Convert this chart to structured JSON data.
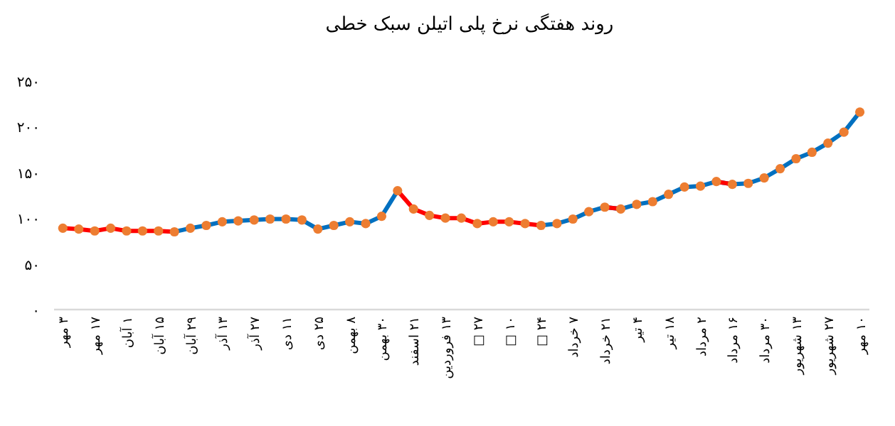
{
  "chart_data": {
    "type": "line",
    "title": "روند هفتگی نرخ پلی اتیلن سبک خطی",
    "categories": [
      "۳ مهر",
      null,
      "۱۷ مهر",
      null,
      "۱ آبان",
      null,
      "۱۵ آبان",
      null,
      "۲۹ آبان",
      null,
      "۱۳ آذر",
      null,
      "۲۷ آذر",
      null,
      "۱۱ دی",
      null,
      "۲۵ دی",
      null,
      "۸ بهمن",
      null,
      "۳۰ بهمن",
      null,
      "۲۱ اسفند",
      null,
      "۱۳ فروردین",
      null,
      "۲۷ □",
      null,
      "۱۰ □",
      null,
      "۲۴ □",
      null,
      "۷ خرداد",
      null,
      "۲۱ خرداد",
      null,
      "۴ تیر",
      null,
      "۱۸ تیر",
      null,
      "۲ مرداد",
      null,
      "۱۶ مرداد",
      null,
      "۳۰ مرداد",
      null,
      "۱۳ شهریور",
      null,
      "۲۷ شهریور",
      null,
      "۱۰ مهر"
    ],
    "series": [
      {
        "type": "line",
        "color": "#0070c0",
        "marker": "none",
        "values": [
          null,
          null,
          null,
          null,
          null,
          null,
          null,
          85,
          89,
          92,
          96,
          97,
          98,
          99,
          99,
          98,
          88,
          92,
          96,
          94,
          102,
          130,
          null,
          null,
          null,
          null,
          null,
          null,
          null,
          null,
          92,
          94,
          99,
          107,
          112,
          110,
          115,
          118,
          126,
          134,
          135,
          140,
          137,
          138,
          144,
          154,
          165,
          172,
          182,
          194,
          216
        ]
      },
      {
        "type": "line",
        "color": "#ff0000",
        "marker": "none",
        "values": [
          89,
          88,
          86,
          89,
          86,
          86,
          86,
          85,
          null,
          null,
          null,
          null,
          null,
          null,
          null,
          null,
          null,
          null,
          null,
          null,
          null,
          130,
          110,
          103,
          100,
          100,
          94,
          96,
          96,
          94,
          92,
          null,
          null,
          null,
          112,
          110,
          null,
          null,
          null,
          null,
          null,
          140,
          137,
          null,
          null,
          null,
          null,
          null,
          null,
          null,
          null
        ]
      },
      {
        "type": "scatter",
        "color": "#ed7d31",
        "values": [
          89,
          88,
          86,
          89,
          86,
          86,
          86,
          85,
          89,
          92,
          96,
          97,
          98,
          99,
          99,
          98,
          88,
          92,
          96,
          94,
          102,
          130,
          110,
          103,
          100,
          100,
          94,
          96,
          96,
          94,
          92,
          94,
          99,
          107,
          112,
          110,
          115,
          118,
          126,
          134,
          135,
          140,
          137,
          138,
          144,
          154,
          165,
          172,
          182,
          194,
          216
        ]
      }
    ],
    "ylim": [
      0,
      250
    ],
    "yticks": [
      {
        "value": 0,
        "label": "۰"
      },
      {
        "value": 50,
        "label": "۵۰"
      },
      {
        "value": 100,
        "label": "۱۰۰"
      },
      {
        "value": 150,
        "label": "۱۵۰"
      },
      {
        "value": 200,
        "label": "۲۰۰"
      },
      {
        "value": 250,
        "label": "۲۵۰"
      }
    ],
    "marker": "circle",
    "line_style": "solid"
  }
}
